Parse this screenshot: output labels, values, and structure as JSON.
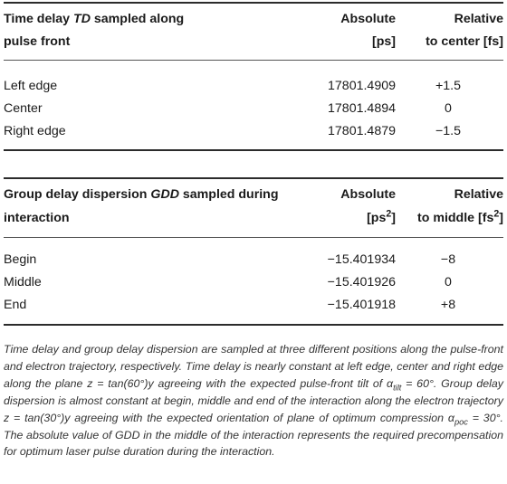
{
  "table1": {
    "header": {
      "col1_line1_prefix": "Time delay ",
      "col1_line1_var": "TD",
      "col1_line1_suffix": " sampled along",
      "col1_line2": "pulse front",
      "col2_line1": "Absolute",
      "col2_line2": "[ps]",
      "col3_line1": "Relative",
      "col3_line2": "to center [fs]"
    },
    "rows": [
      {
        "label": "Left edge",
        "absolute": "17801.4909",
        "relative": "+1.5"
      },
      {
        "label": "Center",
        "absolute": "17801.4894",
        "relative": "0"
      },
      {
        "label": "Right edge",
        "absolute": "17801.4879",
        "relative": "−1.5"
      }
    ]
  },
  "table2": {
    "header": {
      "col1_line1_prefix": "Group delay dispersion ",
      "col1_line1_var": "GDD",
      "col1_line1_suffix": " sampled during",
      "col1_line2": "interaction",
      "col2_line1": "Absolute",
      "col2_line2_base": "[ps",
      "col2_line2_sup": "2",
      "col2_line2_end": "]",
      "col3_line1": "Relative",
      "col3_line2_base": "to middle [fs",
      "col3_line2_sup": "2",
      "col3_line2_end": "]"
    },
    "rows": [
      {
        "label": "Begin",
        "absolute": "−15.401934",
        "relative": "−8"
      },
      {
        "label": "Middle",
        "absolute": "−15.401926",
        "relative": "0"
      },
      {
        "label": "End",
        "absolute": "−15.401918",
        "relative": "+8"
      }
    ]
  },
  "caption": {
    "s1": "Time delay and group delay dispersion are sampled at three different positions along the pulse-front and electron trajectory, respectively. Time delay is nearly constant at left edge, center and right edge along the plane z = tan(60°)y agreeing with the expected pulse-front tilt of α",
    "s1_sub": "tilt",
    "s2": " = 60°. Group delay dispersion is almost constant at begin, middle and end of the interaction along the electron trajectory z = tan(30°)y agreeing with the expected orientation of plane of optimum compression α",
    "s2_sub": "poc",
    "s3": " = 30°. The absolute value of GDD in the middle of the interaction represents the required precompensation for optimum laser pulse duration during the interaction."
  }
}
